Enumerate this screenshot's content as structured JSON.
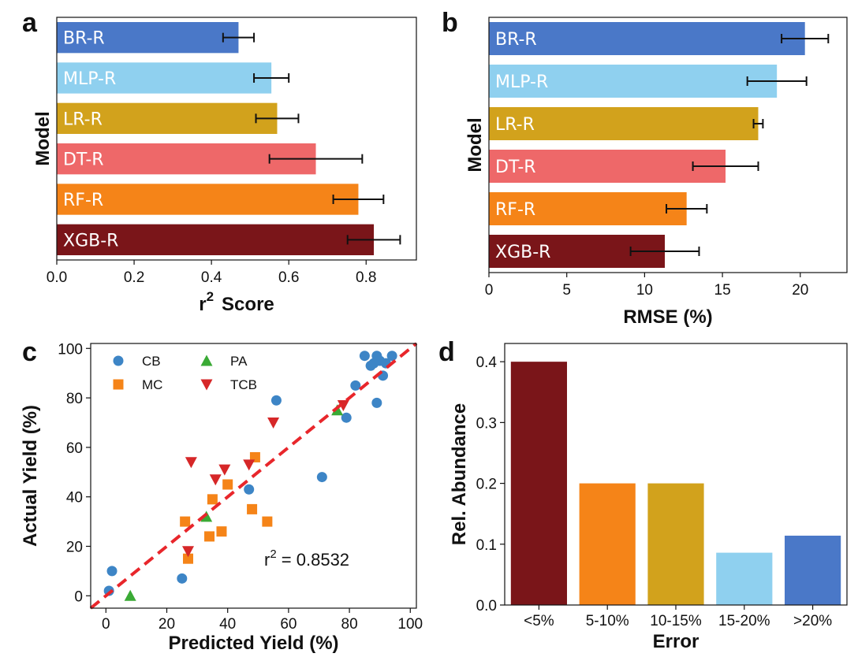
{
  "chart_data": [
    {
      "id": "a",
      "panel_letter": "a",
      "type": "bar",
      "orientation": "horizontal",
      "categories": [
        "BR-R",
        "MLP-R",
        "LR-R",
        "DT-R",
        "RF-R",
        "XGB-R"
      ],
      "values": [
        0.47,
        0.555,
        0.57,
        0.67,
        0.78,
        0.82
      ],
      "errors": [
        0.04,
        0.045,
        0.055,
        0.12,
        0.065,
        0.068
      ],
      "colors": [
        "#4a78c8",
        "#8fd0ef",
        "#d2a21c",
        "#ee6869",
        "#f58418",
        "#7a1519"
      ],
      "xlabel": "r",
      "xlabel_superscript": "2",
      "xlabel_suffix": "Score",
      "ylabel": "Model",
      "xlim": [
        0.0,
        0.93
      ],
      "xticks": [
        0.0,
        0.2,
        0.4,
        0.6,
        0.8
      ],
      "xtick_labels": [
        "0.0",
        "0.2",
        "0.4",
        "0.6",
        "0.8"
      ]
    },
    {
      "id": "b",
      "panel_letter": "b",
      "type": "bar",
      "orientation": "horizontal",
      "categories": [
        "BR-R",
        "MLP-R",
        "LR-R",
        "DT-R",
        "RF-R",
        "XGB-R"
      ],
      "values": [
        20.3,
        18.5,
        17.3,
        15.2,
        12.7,
        11.3
      ],
      "errors": [
        1.5,
        1.9,
        0.3,
        2.1,
        1.3,
        2.2
      ],
      "colors": [
        "#4a78c8",
        "#8fd0ef",
        "#d2a21c",
        "#ee6869",
        "#f58418",
        "#7a1519"
      ],
      "xlabel": "RMSE (%)",
      "ylabel": "Model",
      "xlim": [
        0,
        23
      ],
      "xticks": [
        0,
        5,
        10,
        15,
        20
      ],
      "xtick_labels": [
        "0",
        "5",
        "10",
        "15",
        "20"
      ]
    },
    {
      "id": "c",
      "panel_letter": "c",
      "type": "scatter",
      "xlabel": "Predicted Yield (%)",
      "ylabel": "Actual Yield (%)",
      "xlim": [
        -5,
        102
      ],
      "ylim": [
        -5,
        102
      ],
      "xticks": [
        0,
        20,
        40,
        60,
        80,
        100
      ],
      "yticks": [
        0,
        20,
        40,
        60,
        80,
        100
      ],
      "series": [
        {
          "name": "CB",
          "marker": "circle",
          "color": "#3d85c6",
          "points": [
            [
              1,
              2
            ],
            [
              2,
              10
            ],
            [
              25,
              7
            ],
            [
              47,
              43
            ],
            [
              56,
              79
            ],
            [
              71,
              48
            ],
            [
              79,
              72
            ],
            [
              82,
              85
            ],
            [
              85,
              97
            ],
            [
              87,
              93
            ],
            [
              88,
              94
            ],
            [
              89,
              97
            ],
            [
              90,
              95
            ],
            [
              91,
              89
            ],
            [
              92,
              94
            ],
            [
              94,
              97
            ],
            [
              89,
              78
            ]
          ]
        },
        {
          "name": "MC",
          "marker": "square",
          "color": "#f58418",
          "points": [
            [
              26,
              30
            ],
            [
              27,
              15
            ],
            [
              34,
              24
            ],
            [
              35,
              39
            ],
            [
              38,
              26
            ],
            [
              40,
              45
            ],
            [
              48,
              35
            ],
            [
              49,
              56
            ],
            [
              53,
              30
            ]
          ]
        },
        {
          "name": "PA",
          "marker": "triangle-up",
          "color": "#3aaa35",
          "points": [
            [
              8,
              0
            ],
            [
              33,
              32
            ],
            [
              76,
              75
            ]
          ]
        },
        {
          "name": "TCB",
          "marker": "triangle-down",
          "color": "#d62728",
          "points": [
            [
              27,
              18
            ],
            [
              28,
              54
            ],
            [
              36,
              47
            ],
            [
              39,
              51
            ],
            [
              47,
              53
            ],
            [
              55,
              70
            ],
            [
              78,
              77
            ]
          ]
        }
      ],
      "fit_line": {
        "x": [
          -5,
          102
        ],
        "y": [
          -5,
          102
        ],
        "color": "#e8262b",
        "style": "dashed"
      },
      "annotation": {
        "text": "r",
        "superscript": "2",
        "suffix": " = 0.8532"
      }
    },
    {
      "id": "d",
      "panel_letter": "d",
      "type": "bar",
      "orientation": "vertical",
      "categories": [
        "<5%",
        "5-10%",
        "10-15%",
        "15-20%",
        ">20%"
      ],
      "values": [
        0.4,
        0.2,
        0.2,
        0.086,
        0.114
      ],
      "colors": [
        "#7a1519",
        "#f58418",
        "#d2a21c",
        "#8fd0ef",
        "#4a78c8"
      ],
      "xlabel": "Error",
      "ylabel": "Rel. Abundance",
      "ylim": [
        0,
        0.43
      ],
      "yticks": [
        0.0,
        0.1,
        0.2,
        0.3,
        0.4
      ],
      "ytick_labels": [
        "0.0",
        "0.1",
        "0.2",
        "0.3",
        "0.4"
      ]
    }
  ]
}
